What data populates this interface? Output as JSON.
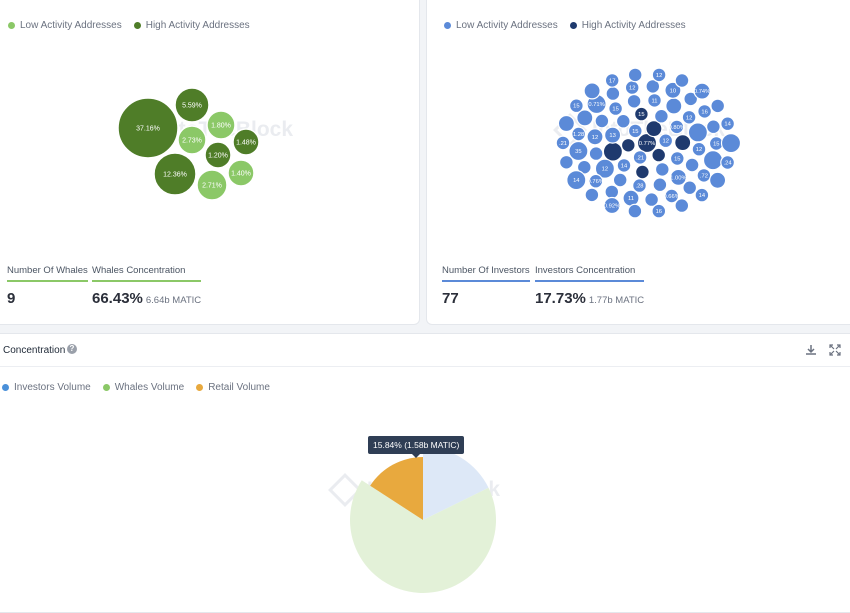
{
  "whales_panel": {
    "legend": [
      {
        "label": "Low Activity Addresses",
        "color": "#8bc867"
      },
      {
        "label": "High Activity Addresses",
        "color": "#4f7d28"
      }
    ],
    "bubbles": [
      {
        "label": "37.16%",
        "activity": "high"
      },
      {
        "label": "5.59%",
        "activity": "high"
      },
      {
        "label": "1.80%",
        "activity": "low"
      },
      {
        "label": "2.73%",
        "activity": "low"
      },
      {
        "label": "1.48%",
        "activity": "high"
      },
      {
        "label": "1.20%",
        "activity": "high"
      },
      {
        "label": "12.36%",
        "activity": "high"
      },
      {
        "label": "2.71%",
        "activity": "low"
      },
      {
        "label": "1.40%",
        "activity": "low"
      }
    ],
    "stats": {
      "count_label": "Number Of Whales",
      "count_value": "9",
      "concentration_label": "Whales Concentration",
      "concentration_value": "66.43%",
      "concentration_sub": "6.64b MATIC"
    },
    "accent": "#8bc867"
  },
  "investors_panel": {
    "legend": [
      {
        "label": "Low Activity Addresses",
        "color": "#5b8ad8"
      },
      {
        "label": "High Activity Addresses",
        "color": "#1f3a6e"
      }
    ],
    "bubble_labels": [
      "0.77%",
      ".21",
      "15",
      "12",
      "14",
      "13",
      "15",
      "0.80%",
      "15",
      "12",
      "12",
      "15",
      "11",
      "12",
      "12",
      "1.00%",
      ".28",
      "1.28",
      "0.71%",
      "12",
      "10",
      "16",
      "15",
      ".72",
      "0.66%",
      "11",
      "0.76%",
      "35",
      "17",
      "12",
      "0.74%",
      "14",
      ".24",
      "14",
      "16",
      "0.92%",
      "14",
      ".21",
      "15",
      ".21",
      "12"
    ],
    "stats": {
      "count_label": "Number Of Investors",
      "count_value": "77",
      "concentration_label": "Investors Concentration",
      "concentration_value": "17.73%",
      "concentration_sub": "1.77b MATIC"
    },
    "accent": "#5b8ad8"
  },
  "concentration": {
    "title": "Concentration",
    "legend": [
      {
        "label": "Investors Volume",
        "color": "#4a90d9"
      },
      {
        "label": "Whales Volume",
        "color": "#8bc867"
      },
      {
        "label": "Retail Volume",
        "color": "#e8a93e"
      }
    ],
    "tooltip": "15.84% (1.58b MATIC)",
    "download_icon": "download-icon",
    "expand_icon": "expand-icon"
  },
  "chart_data": {
    "type": "pie",
    "series": [
      {
        "name": "Investors Volume",
        "value": 17.73,
        "color": "#dde8f7"
      },
      {
        "name": "Whales Volume",
        "value": 66.43,
        "color": "#e3f1d8"
      },
      {
        "name": "Retail Volume",
        "value": 15.84,
        "color": "#e8a93e"
      }
    ],
    "highlighted": "Retail Volume"
  },
  "watermark": "IntoTheBlock"
}
